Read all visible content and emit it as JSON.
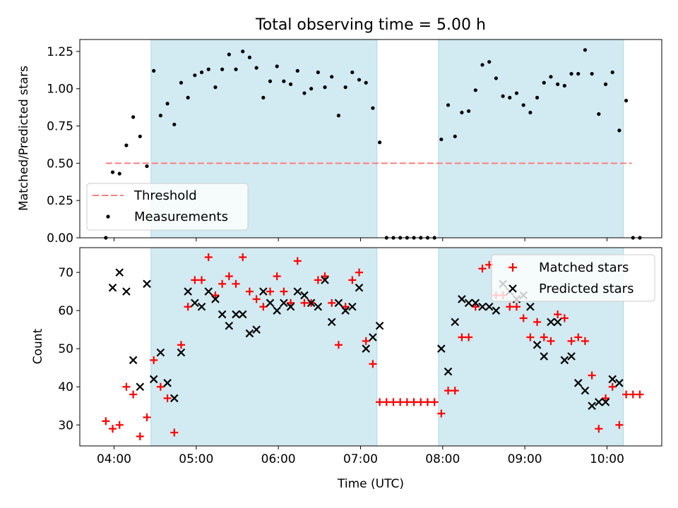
{
  "figure": {
    "title": "Total observing time = 5.00 h",
    "xlabel": "Time (UTC)"
  },
  "colors": {
    "shade": "#add8e6",
    "threshold": "#ff7f7f",
    "measurements": "#000000",
    "matched": "#ff0000",
    "predicted": "#000000"
  },
  "chart_data": [
    {
      "type": "scatter",
      "panel": "top",
      "ylabel": "Matched/Predicted stars",
      "xlim": [
        "03:35",
        "10:40"
      ],
      "ylim": [
        0,
        1.33
      ],
      "yticks": [
        "0.00",
        "0.25",
        "0.50",
        "0.75",
        "1.00",
        "1.25"
      ],
      "xticks_labels_shown": false,
      "shaded_intervals": [
        [
          "04:27",
          "07:12"
        ],
        [
          "07:57",
          "10:12"
        ]
      ],
      "threshold": {
        "name": "Threshold",
        "value": 0.5,
        "x_range": [
          "03:54",
          "10:18"
        ],
        "style": "dashed"
      },
      "legend": {
        "position": "lower-left",
        "entries": [
          "Threshold",
          "Measurements"
        ]
      },
      "series": [
        {
          "name": "Measurements",
          "marker": "dot",
          "points": [
            [
              "03:54",
              0.0
            ],
            [
              "03:59",
              0.44
            ],
            [
              "04:04",
              0.43
            ],
            [
              "04:09",
              0.62
            ],
            [
              "04:14",
              0.81
            ],
            [
              "04:19",
              0.68
            ],
            [
              "04:24",
              0.48
            ],
            [
              "04:29",
              1.12
            ],
            [
              "04:34",
              0.82
            ],
            [
              "04:39",
              0.9
            ],
            [
              "04:44",
              0.76
            ],
            [
              "04:49",
              1.04
            ],
            [
              "04:54",
              0.94
            ],
            [
              "04:59",
              1.09
            ],
            [
              "05:04",
              1.11
            ],
            [
              "05:09",
              1.13
            ],
            [
              "05:14",
              1.01
            ],
            [
              "05:19",
              1.13
            ],
            [
              "05:24",
              1.23
            ],
            [
              "05:29",
              1.13
            ],
            [
              "05:34",
              1.25
            ],
            [
              "05:39",
              1.21
            ],
            [
              "05:44",
              1.14
            ],
            [
              "05:49",
              0.94
            ],
            [
              "05:54",
              1.05
            ],
            [
              "05:59",
              1.15
            ],
            [
              "06:04",
              1.05
            ],
            [
              "06:09",
              1.03
            ],
            [
              "06:14",
              1.12
            ],
            [
              "06:19",
              0.97
            ],
            [
              "06:24",
              1.0
            ],
            [
              "06:29",
              1.11
            ],
            [
              "06:34",
              1.01
            ],
            [
              "06:39",
              1.08
            ],
            [
              "06:44",
              0.82
            ],
            [
              "06:49",
              1.01
            ],
            [
              "06:54",
              1.11
            ],
            [
              "06:59",
              1.06
            ],
            [
              "07:04",
              1.04
            ],
            [
              "07:09",
              0.87
            ],
            [
              "07:14",
              0.64
            ],
            [
              "07:19",
              0.0
            ],
            [
              "07:24",
              0.0
            ],
            [
              "07:29",
              0.0
            ],
            [
              "07:34",
              0.0
            ],
            [
              "07:39",
              0.0
            ],
            [
              "07:44",
              0.0
            ],
            [
              "07:49",
              0.0
            ],
            [
              "07:54",
              0.0
            ],
            [
              "07:59",
              0.66
            ],
            [
              "08:04",
              0.89
            ],
            [
              "08:09",
              0.68
            ],
            [
              "08:14",
              0.84
            ],
            [
              "08:19",
              0.85
            ],
            [
              "08:24",
              0.99
            ],
            [
              "08:29",
              1.16
            ],
            [
              "08:34",
              1.18
            ],
            [
              "08:39",
              1.07
            ],
            [
              "08:44",
              0.95
            ],
            [
              "08:49",
              0.94
            ],
            [
              "08:54",
              0.97
            ],
            [
              "08:59",
              0.89
            ],
            [
              "09:04",
              0.84
            ],
            [
              "09:09",
              0.94
            ],
            [
              "09:14",
              1.04
            ],
            [
              "09:19",
              1.08
            ],
            [
              "09:24",
              1.03
            ],
            [
              "09:29",
              1.02
            ],
            [
              "09:34",
              1.1
            ],
            [
              "09:39",
              1.1
            ],
            [
              "09:44",
              1.26
            ],
            [
              "09:49",
              1.1
            ],
            [
              "09:54",
              0.83
            ],
            [
              "09:59",
              1.03
            ],
            [
              "10:04",
              1.11
            ],
            [
              "10:09",
              0.72
            ],
            [
              "10:14",
              0.92
            ],
            [
              "10:19",
              0.0
            ],
            [
              "10:24",
              0.0
            ]
          ]
        }
      ]
    },
    {
      "type": "scatter",
      "panel": "bottom",
      "ylabel": "Count",
      "xlabel": "Time (UTC)",
      "xlim": [
        "03:35",
        "10:40"
      ],
      "ylim": [
        24.5,
        76.5
      ],
      "yticks": [
        "30",
        "40",
        "50",
        "60",
        "70"
      ],
      "xticks": [
        "04:00",
        "05:00",
        "06:00",
        "07:00",
        "08:00",
        "09:00",
        "10:00"
      ],
      "shaded_intervals": [
        [
          "04:27",
          "07:12"
        ],
        [
          "07:57",
          "10:12"
        ]
      ],
      "legend": {
        "position": "upper-right",
        "entries": [
          "Matched stars",
          "Predicted stars"
        ]
      },
      "series": [
        {
          "name": "Matched stars",
          "marker": "plus",
          "points": [
            [
              "03:54",
              31
            ],
            [
              "03:59",
              29
            ],
            [
              "04:04",
              30
            ],
            [
              "04:09",
              40
            ],
            [
              "04:14",
              38
            ],
            [
              "04:19",
              27
            ],
            [
              "04:24",
              32
            ],
            [
              "04:29",
              47
            ],
            [
              "04:34",
              40
            ],
            [
              "04:39",
              37
            ],
            [
              "04:44",
              28
            ],
            [
              "04:49",
              51
            ],
            [
              "04:54",
              61
            ],
            [
              "04:59",
              68
            ],
            [
              "05:04",
              68
            ],
            [
              "05:09",
              74
            ],
            [
              "05:14",
              64
            ],
            [
              "05:19",
              67
            ],
            [
              "05:24",
              69
            ],
            [
              "05:29",
              67
            ],
            [
              "05:34",
              74
            ],
            [
              "05:39",
              65
            ],
            [
              "05:44",
              63
            ],
            [
              "05:49",
              61
            ],
            [
              "05:54",
              65
            ],
            [
              "05:59",
              69
            ],
            [
              "06:04",
              65
            ],
            [
              "06:09",
              62
            ],
            [
              "06:14",
              73
            ],
            [
              "06:19",
              62
            ],
            [
              "06:24",
              62
            ],
            [
              "06:29",
              68
            ],
            [
              "06:34",
              69
            ],
            [
              "06:39",
              62
            ],
            [
              "06:44",
              51
            ],
            [
              "06:49",
              61
            ],
            [
              "06:54",
              68
            ],
            [
              "06:59",
              70
            ],
            [
              "07:04",
              52
            ],
            [
              "07:09",
              46
            ],
            [
              "07:14",
              36
            ],
            [
              "07:19",
              36
            ],
            [
              "07:24",
              36
            ],
            [
              "07:29",
              36
            ],
            [
              "07:34",
              36
            ],
            [
              "07:39",
              36
            ],
            [
              "07:44",
              36
            ],
            [
              "07:49",
              36
            ],
            [
              "07:54",
              36
            ],
            [
              "07:59",
              33
            ],
            [
              "08:04",
              39
            ],
            [
              "08:09",
              39
            ],
            [
              "08:14",
              53
            ],
            [
              "08:19",
              53
            ],
            [
              "08:24",
              61
            ],
            [
              "08:29",
              71
            ],
            [
              "08:34",
              72
            ],
            [
              "08:39",
              64
            ],
            [
              "08:44",
              64
            ],
            [
              "08:49",
              61
            ],
            [
              "08:54",
              61
            ],
            [
              "08:59",
              58
            ],
            [
              "09:04",
              53
            ],
            [
              "09:09",
              57
            ],
            [
              "09:14",
              53
            ],
            [
              "09:19",
              52
            ],
            [
              "09:24",
              59
            ],
            [
              "09:29",
              58
            ],
            [
              "09:34",
              52
            ],
            [
              "09:39",
              53
            ],
            [
              "09:44",
              52
            ],
            [
              "09:49",
              43
            ],
            [
              "09:54",
              29
            ],
            [
              "09:59",
              37
            ],
            [
              "10:04",
              40
            ],
            [
              "10:09",
              30
            ],
            [
              "10:14",
              38
            ],
            [
              "10:19",
              38
            ],
            [
              "10:24",
              38
            ]
          ]
        },
        {
          "name": "Predicted stars",
          "marker": "x",
          "points": [
            [
              "03:59",
              66
            ],
            [
              "04:04",
              70
            ],
            [
              "04:09",
              65
            ],
            [
              "04:14",
              47
            ],
            [
              "04:19",
              40
            ],
            [
              "04:24",
              67
            ],
            [
              "04:29",
              42
            ],
            [
              "04:34",
              49
            ],
            [
              "04:39",
              41
            ],
            [
              "04:44",
              37
            ],
            [
              "04:49",
              49
            ],
            [
              "04:54",
              65
            ],
            [
              "04:59",
              62
            ],
            [
              "05:04",
              61
            ],
            [
              "05:09",
              65
            ],
            [
              "05:14",
              63
            ],
            [
              "05:19",
              59
            ],
            [
              "05:24",
              56
            ],
            [
              "05:29",
              59
            ],
            [
              "05:34",
              59
            ],
            [
              "05:39",
              54
            ],
            [
              "05:44",
              55
            ],
            [
              "05:49",
              65
            ],
            [
              "05:54",
              62
            ],
            [
              "05:59",
              60
            ],
            [
              "06:04",
              62
            ],
            [
              "06:09",
              61
            ],
            [
              "06:14",
              65
            ],
            [
              "06:19",
              64
            ],
            [
              "06:24",
              62
            ],
            [
              "06:29",
              61
            ],
            [
              "06:34",
              68
            ],
            [
              "06:39",
              57
            ],
            [
              "06:44",
              62
            ],
            [
              "06:49",
              60
            ],
            [
              "06:54",
              61
            ],
            [
              "06:59",
              66
            ],
            [
              "07:04",
              50
            ],
            [
              "07:09",
              53
            ],
            [
              "07:14",
              56
            ],
            [
              "07:59",
              50
            ],
            [
              "08:04",
              44
            ],
            [
              "08:09",
              57
            ],
            [
              "08:14",
              63
            ],
            [
              "08:19",
              62
            ],
            [
              "08:24",
              62
            ],
            [
              "08:29",
              61
            ],
            [
              "08:34",
              61
            ],
            [
              "08:39",
              60
            ],
            [
              "08:44",
              67
            ],
            [
              "08:49",
              65
            ],
            [
              "08:54",
              63
            ],
            [
              "08:59",
              64
            ],
            [
              "09:04",
              61
            ],
            [
              "09:09",
              51
            ],
            [
              "09:14",
              48
            ],
            [
              "09:19",
              57
            ],
            [
              "09:24",
              57
            ],
            [
              "09:29",
              47
            ],
            [
              "09:34",
              48
            ],
            [
              "09:39",
              41
            ],
            [
              "09:44",
              39
            ],
            [
              "09:49",
              35
            ],
            [
              "09:54",
              36
            ],
            [
              "09:59",
              36
            ],
            [
              "10:04",
              42
            ],
            [
              "10:09",
              41
            ]
          ]
        }
      ]
    }
  ]
}
